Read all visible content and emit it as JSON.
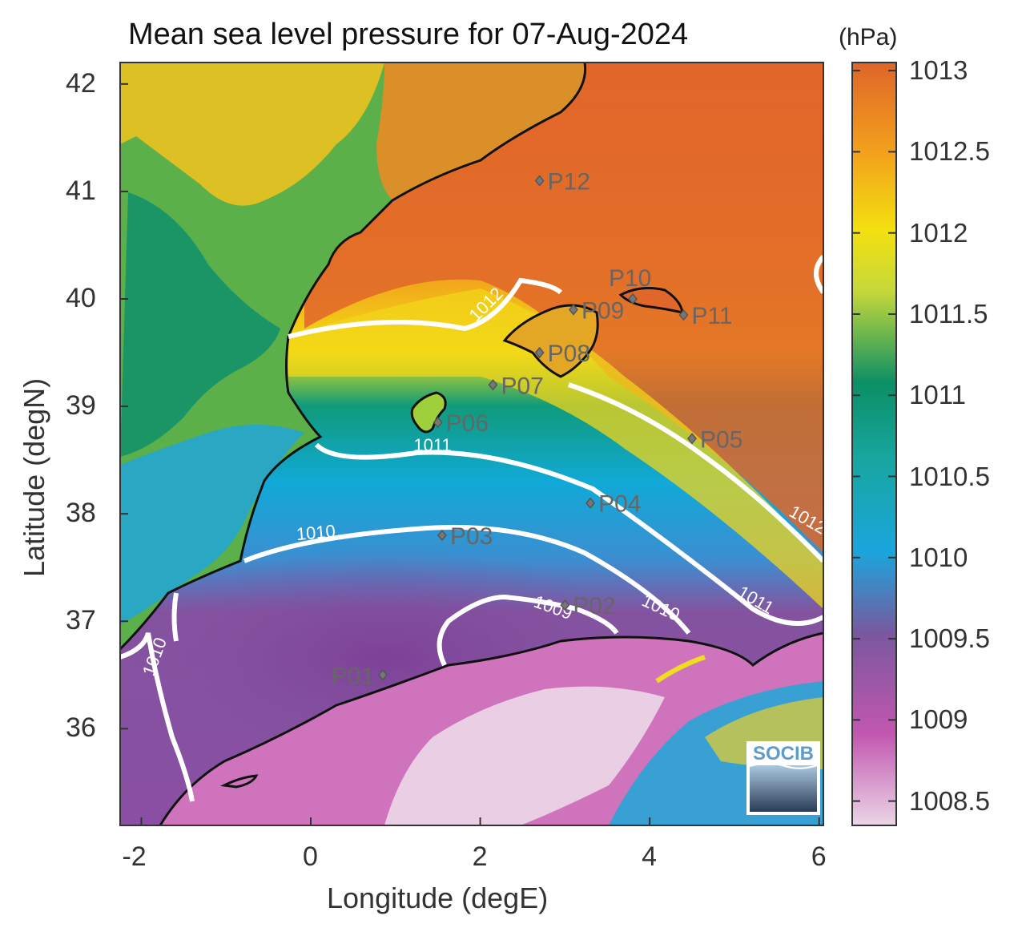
{
  "title": "Mean sea level pressure for 07-Aug-2024",
  "colorbar": {
    "unit": "(hPa)",
    "ticks": [
      "1013",
      "1012.5",
      "1012",
      "1011.5",
      "1011",
      "1010.5",
      "1010",
      "1009.5",
      "1009",
      "1008.5"
    ],
    "range": [
      1008.35,
      1013.05
    ],
    "colors": [
      "#e9d4e4",
      "#b74ba8",
      "#7d539e",
      "#0ba8dc",
      "#0f8f6d",
      "#e4e010",
      "#f2a51c",
      "#e06a2a"
    ]
  },
  "axes": {
    "xlabel": "Longitude (degE)",
    "ylabel": "Latitude (degN)",
    "xticks": [
      "-2",
      "0",
      "2",
      "4",
      "6"
    ],
    "yticks": [
      "42",
      "41",
      "40",
      "39",
      "38",
      "37",
      "36"
    ],
    "xlim": [
      -2.25,
      6.05
    ],
    "ylim": [
      35.1,
      42.2
    ]
  },
  "isobars": [
    {
      "label": "1012",
      "color": "#ffffff"
    },
    {
      "label": "1011",
      "color": "#ffffff"
    },
    {
      "label": "1010",
      "color": "#ffffff"
    },
    {
      "label": "1009",
      "color": "#ffffff"
    }
  ],
  "stations": [
    {
      "id": "P01",
      "lon": 0.85,
      "lat": 36.5
    },
    {
      "id": "P02",
      "lon": 3.0,
      "lat": 37.15
    },
    {
      "id": "P03",
      "lon": 1.55,
      "lat": 37.8
    },
    {
      "id": "P04",
      "lon": 3.3,
      "lat": 38.1
    },
    {
      "id": "P05",
      "lon": 4.5,
      "lat": 38.7
    },
    {
      "id": "P06",
      "lon": 1.5,
      "lat": 38.85
    },
    {
      "id": "P07",
      "lon": 2.15,
      "lat": 39.2
    },
    {
      "id": "P08",
      "lon": 2.7,
      "lat": 39.5
    },
    {
      "id": "P09",
      "lon": 3.1,
      "lat": 39.9
    },
    {
      "id": "P10",
      "lon": 3.8,
      "lat": 40.0
    },
    {
      "id": "P11",
      "lon": 4.4,
      "lat": 39.85
    },
    {
      "id": "P12",
      "lon": 2.7,
      "lat": 41.1
    }
  ],
  "logo": {
    "text": "SOCIB"
  }
}
